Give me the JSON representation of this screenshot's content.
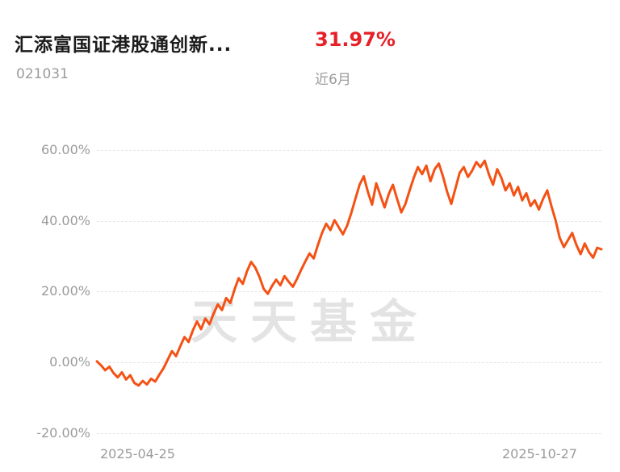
{
  "header": {
    "title": "汇添富国证港股通创新...",
    "code": "021031",
    "change_percent": "31.97%",
    "period_label": "近6月"
  },
  "watermark": "天天基金",
  "colors": {
    "line": "#f45114",
    "change": "#e62129",
    "muted_text": "#9b9b9b",
    "title_text": "#1b1b1b"
  },
  "chart_data": {
    "type": "line",
    "title": "汇添富国证港股通创新 近6月涨幅",
    "xlabel": "",
    "ylabel": "",
    "ylim": [
      -20,
      60
    ],
    "grid": "dashed-horizontal",
    "legend": "none",
    "y_tick_labels": [
      "60.00%",
      "40.00%",
      "20.00%",
      "0.00%",
      "-20.00%"
    ],
    "x_tick_labels": [
      "2025-04-25",
      "2025-10-27"
    ],
    "series": [
      {
        "name": "近6月",
        "values": [
          0.3,
          -0.8,
          -2.2,
          -1.2,
          -3.0,
          -4.2,
          -2.8,
          -4.8,
          -3.6,
          -5.8,
          -6.5,
          -5.2,
          -6.2,
          -4.6,
          -5.4,
          -3.4,
          -1.6,
          0.8,
          3.2,
          1.8,
          4.6,
          7.2,
          5.8,
          9.0,
          11.6,
          9.4,
          12.4,
          10.8,
          13.8,
          16.4,
          14.8,
          18.2,
          16.8,
          20.6,
          23.8,
          22.2,
          25.8,
          28.4,
          26.8,
          24.2,
          20.8,
          19.4,
          21.6,
          23.4,
          21.8,
          24.4,
          22.8,
          21.4,
          23.6,
          26.2,
          28.6,
          30.8,
          29.4,
          33.2,
          36.6,
          39.2,
          37.4,
          40.2,
          38.2,
          36.2,
          38.6,
          42.2,
          46.2,
          50.2,
          52.6,
          48.2,
          44.6,
          50.6,
          47.2,
          43.8,
          47.6,
          50.2,
          46.2,
          42.4,
          44.8,
          48.6,
          52.2,
          55.2,
          53.2,
          55.6,
          51.2,
          54.6,
          56.2,
          52.6,
          48.2,
          44.8,
          49.2,
          53.6,
          55.2,
          52.4,
          54.2,
          56.6,
          55.2,
          57.0,
          53.2,
          50.2,
          54.6,
          52.2,
          48.6,
          50.6,
          47.2,
          49.6,
          45.8,
          47.8,
          44.2,
          45.8,
          43.2,
          46.2,
          48.6,
          44.2,
          40.2,
          35.2,
          32.6,
          34.6,
          36.6,
          33.2,
          30.6,
          33.6,
          31.2,
          29.6,
          32.4,
          31.97
        ]
      }
    ]
  }
}
